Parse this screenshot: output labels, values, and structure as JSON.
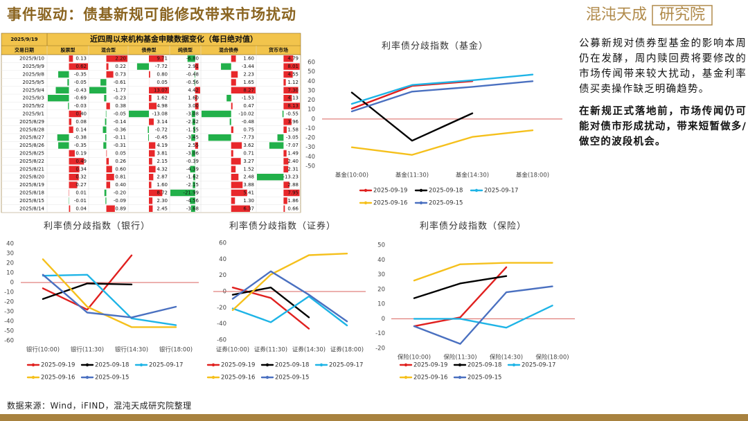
{
  "header": {
    "title": "事件驱动：债基新规可能修改带来市场扰动",
    "logo_main": "混沌天成",
    "logo_box": "研究院"
  },
  "table": {
    "date": "2025/9/19",
    "title": "近四周以来机构基金申赎数据变化（每日绝对值）",
    "columns": [
      "交易日期",
      "股票型",
      "混合型",
      "债券型",
      "纯债型",
      "混合债券",
      "货币市场"
    ],
    "positive_color": "#e8282b",
    "negative_color": "#22b04a",
    "rows": [
      [
        "2025/9/10",
        "0.13",
        "2.20",
        "9.71",
        "-6.80",
        "1.60",
        "4.79"
      ],
      [
        "2025/9/9",
        "0.62",
        "0.22",
        "-7.72",
        "2.91",
        "-3.44",
        "8.01"
      ],
      [
        "2025/9/8",
        "-0.35",
        "0.73",
        "0.80",
        "-0.48",
        "2.23",
        "4.55"
      ],
      [
        "2025/9/5",
        "-0.05",
        "-0.61",
        "0.05",
        "-0.56",
        "1.65",
        "1.12"
      ],
      [
        "2025/9/4",
        "-0.43",
        "-1.77",
        "13.07",
        "4.42",
        "8.27",
        "7.30"
      ],
      [
        "2025/9/3",
        "-0.69",
        "-0.23",
        "1.62",
        "1.60",
        "-1.53",
        "4.13"
      ],
      [
        "2025/9/2",
        "-0.03",
        "0.38",
        "4.98",
        "3.00",
        "0.47",
        "8.13"
      ],
      [
        "2025/9/1",
        "0.40",
        "-0.05",
        "-13.08",
        "-3.08",
        "-10.02",
        "-0.55"
      ],
      [
        "2025/8/29",
        "0.08",
        "-0.14",
        "3.14",
        "-2.42",
        "-0.48",
        "3.96"
      ],
      [
        "2025/8/28",
        "0.14",
        "-0.36",
        "-0.72",
        "-1.55",
        "0.75",
        "1.58"
      ],
      [
        "2025/8/27",
        "-0.38",
        "-0.11",
        "-0.45",
        "-3.45",
        "-7.73",
        "-3.05"
      ],
      [
        "2025/8/26",
        "-0.35",
        "-0.31",
        "4.19",
        "2.55",
        "3.62",
        "-7.07"
      ],
      [
        "2025/8/25",
        "0.19",
        "0.05",
        "3.81",
        "-3.06",
        "0.71",
        "1.49"
      ],
      [
        "2025/8/22",
        "0.49",
        "0.26",
        "2.15",
        "-0.39",
        "3.27",
        "2.40"
      ],
      [
        "2025/8/21",
        "0.34",
        "0.60",
        "4.32",
        "-4.39",
        "1.52",
        "2.31"
      ],
      [
        "2025/8/20",
        "0.32",
        "0.81",
        "2.87",
        "-1.62",
        "2.48",
        "-13.23"
      ],
      [
        "2025/8/19",
        "0.27",
        "0.40",
        "1.60",
        "-2.15",
        "3.88",
        "2.88"
      ],
      [
        "2025/8/18",
        "0.01",
        "-0.20",
        "8.72",
        "-21.99",
        "5.41",
        "7.95"
      ],
      [
        "2025/8/15",
        "-0.01",
        "-0.09",
        "2.30",
        "-4.56",
        "1.30",
        "1.86"
      ],
      [
        "2025/8/14",
        "0.04",
        "0.89",
        "2.45",
        "-3.68",
        "6.37",
        "0.66"
      ]
    ]
  },
  "chart_data": [
    {
      "type": "line",
      "title": "利率债分歧指数（基金）",
      "categories": [
        "基金(10:00)",
        "基金(11:30)",
        "基金(14:30)",
        "基金(18:00)"
      ],
      "ylim": [
        -50,
        60
      ],
      "yticks": [
        60,
        50,
        40,
        30,
        20,
        10,
        0,
        -10,
        -20,
        -30,
        -40,
        -50
      ],
      "hline": 0,
      "hline_color": "#d9605c",
      "legend": "bottom",
      "series": [
        {
          "name": "2025-09-19",
          "color": "#e0201f",
          "values": [
            11,
            35,
            40,
            null
          ]
        },
        {
          "name": "2025-09-18",
          "color": "#000000",
          "values": [
            28,
            -23,
            6,
            null
          ]
        },
        {
          "name": "2025-09-17",
          "color": "#1eb4e6",
          "values": [
            16,
            36,
            41,
            47
          ]
        },
        {
          "name": "2025-09-16",
          "color": "#f5c01c",
          "values": [
            -30,
            -38,
            -19,
            -12
          ]
        },
        {
          "name": "2025-09-15",
          "color": "#4a70c0",
          "values": [
            8,
            29,
            34,
            40
          ]
        }
      ]
    },
    {
      "type": "line",
      "title": "利率债分歧指数（银行）",
      "categories": [
        "银行(10:00)",
        "银行(11:30)",
        "银行(14:30)",
        "银行(18:00)"
      ],
      "ylim": [
        -60,
        40
      ],
      "yticks": [
        40,
        30,
        20,
        10,
        0,
        -10,
        -20,
        -30,
        -40,
        -50,
        -60
      ],
      "hline": 0,
      "hline_color": "#d9605c",
      "legend": "bottom",
      "series": [
        {
          "name": "2025-09-19",
          "color": "#e0201f",
          "values": [
            -6,
            -28,
            28,
            null
          ]
        },
        {
          "name": "2025-09-18",
          "color": "#000000",
          "values": [
            -17,
            -1,
            -2,
            null
          ]
        },
        {
          "name": "2025-09-17",
          "color": "#1eb4e6",
          "values": [
            7,
            8,
            -37,
            -44
          ]
        },
        {
          "name": "2025-09-16",
          "color": "#f5c01c",
          "values": [
            24,
            -25,
            -46,
            -46
          ]
        },
        {
          "name": "2025-09-15",
          "color": "#4a70c0",
          "values": [
            8,
            -31,
            -36,
            -25
          ]
        }
      ]
    },
    {
      "type": "line",
      "title": "利率债分歧指数（证券）",
      "categories": [
        "证券(10:00)",
        "证券(11:30)",
        "证券(14:30)",
        "证券(18:00)"
      ],
      "ylim": [
        -60,
        60
      ],
      "yticks": [
        60,
        40,
        20,
        0,
        -20,
        -40,
        -60
      ],
      "hline": 0,
      "hline_color": "#d9605c",
      "legend": "bottom",
      "series": [
        {
          "name": "2025-09-19",
          "color": "#e0201f",
          "values": [
            5,
            -8,
            -46,
            null
          ]
        },
        {
          "name": "2025-09-18",
          "color": "#000000",
          "values": [
            -4,
            5,
            -32,
            null
          ]
        },
        {
          "name": "2025-09-17",
          "color": "#1eb4e6",
          "values": [
            -21,
            -38,
            -6,
            -42
          ]
        },
        {
          "name": "2025-09-16",
          "color": "#f5c01c",
          "values": [
            -23,
            21,
            45,
            47
          ]
        },
        {
          "name": "2025-09-15",
          "color": "#4a70c0",
          "values": [
            -9,
            25,
            -4,
            -37
          ]
        }
      ]
    },
    {
      "type": "line",
      "title": "利率债分歧指数（保险）",
      "categories": [
        "保险(10:00)",
        "保险(11:30)",
        "保险(14:30)",
        "保险(18:00)"
      ],
      "ylim": [
        -20,
        50
      ],
      "yticks": [
        50,
        40,
        30,
        20,
        10,
        0,
        -10,
        -20
      ],
      "hline": 0,
      "hline_color": "#d9605c",
      "legend": "bottom",
      "series": [
        {
          "name": "2025-09-19",
          "color": "#e0201f",
          "values": [
            -5,
            1,
            35,
            null
          ]
        },
        {
          "name": "2025-09-18",
          "color": "#000000",
          "values": [
            14,
            24,
            29,
            null
          ]
        },
        {
          "name": "2025-09-17",
          "color": "#1eb4e6",
          "values": [
            0,
            0,
            -6,
            9
          ]
        },
        {
          "name": "2025-09-16",
          "color": "#f5c01c",
          "values": [
            26,
            37,
            38,
            38
          ]
        },
        {
          "name": "2025-09-15",
          "color": "#4a70c0",
          "values": [
            -5,
            -17,
            18,
            22
          ]
        }
      ]
    }
  ],
  "commentary": {
    "paragraphs": [
      "公募新规对债券型基金的影响本周仍在发酵，周内赎回费将要修改的市场传闻带来较大扰动，基金利率债买卖操作缺乏明确趋势。",
      "在新规正式落地前，市场传闻仍可能对债市形成扰动，带来短暂做多/做空的波段机会。"
    ]
  },
  "footer": {
    "source": "数据来源：Wind，iFIND，混沌天成研究院整理"
  }
}
